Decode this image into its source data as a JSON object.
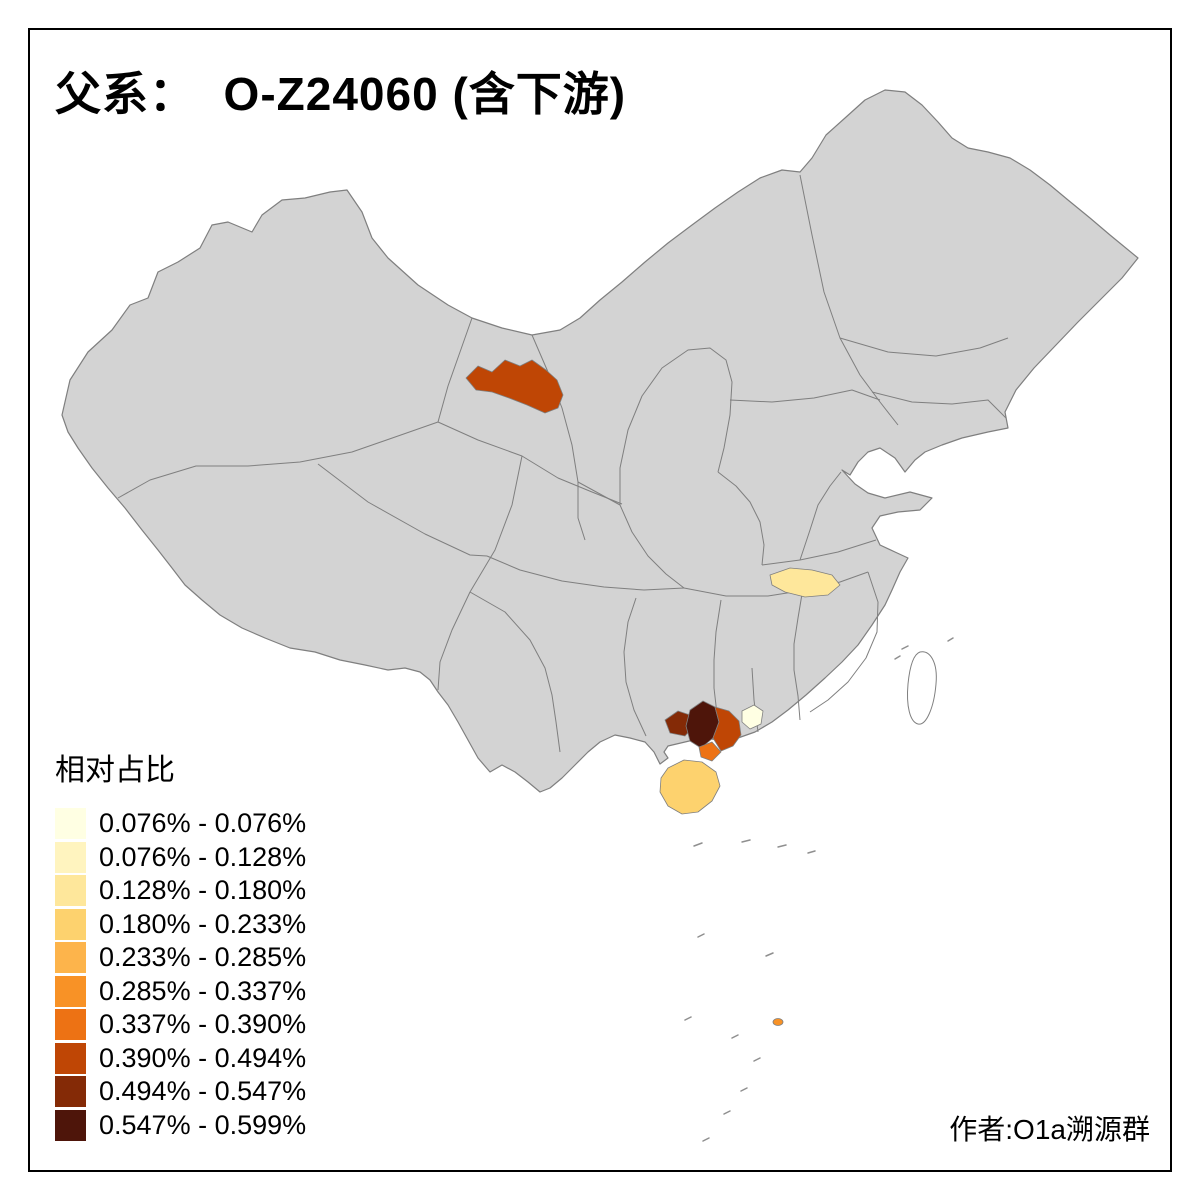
{
  "header": {
    "title": "父系：  O-Z24060 (含下游)"
  },
  "legend": {
    "title": "相对占比",
    "classes": [
      {
        "label": "0.076% - 0.076%",
        "color": "#FFFFE3"
      },
      {
        "label": "0.076% - 0.128%",
        "color": "#FFF4BF"
      },
      {
        "label": "0.128% - 0.180%",
        "color": "#FEE79B"
      },
      {
        "label": "0.180% - 0.233%",
        "color": "#FDD26E"
      },
      {
        "label": "0.233% - 0.285%",
        "color": "#FDB44B"
      },
      {
        "label": "0.285% - 0.337%",
        "color": "#F89226"
      },
      {
        "label": "0.337% - 0.390%",
        "color": "#ED7214"
      },
      {
        "label": "0.390% - 0.494%",
        "color": "#BF4605"
      },
      {
        "label": "0.494% - 0.547%",
        "color": "#842A06"
      },
      {
        "label": "0.547% - 0.599%",
        "color": "#4E150A"
      }
    ]
  },
  "map": {
    "land_fill": "#D3D3D3",
    "boundary_color": "#7F7F7F",
    "frame_color": "#000000",
    "taiwan_fill": "#FFFFFF",
    "islet_color": "#8F8F8F"
  },
  "map_data": {
    "type": "choropleth",
    "regions": [
      {
        "id": "hexi-corridor-gansu",
        "class_index": 7
      },
      {
        "id": "west-hubei",
        "class_index": 2
      },
      {
        "id": "guangxi-west",
        "class_index": 8
      },
      {
        "id": "guangxi-center",
        "class_index": 9
      },
      {
        "id": "guangxi-east",
        "class_index": 7
      },
      {
        "id": "leizhou",
        "class_index": 6
      },
      {
        "id": "west-guangdong",
        "class_index": 0
      },
      {
        "id": "hainan",
        "class_index": 3
      },
      {
        "id": "south-china-sea-island",
        "class_index": 5
      }
    ]
  },
  "footer": {
    "credit": "作者:O1a溯源群"
  }
}
